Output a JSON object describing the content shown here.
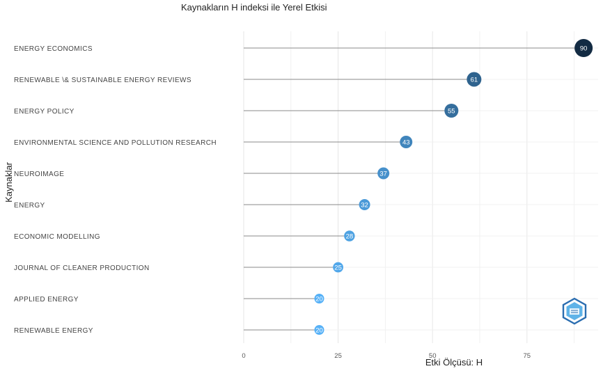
{
  "chart_data": {
    "type": "lollipop",
    "title": "Kaynakların H indeksi ile Yerel Etkisi",
    "xlabel": "Etki Ölçüsü: H",
    "ylabel": "Kaynaklar",
    "xlim": [
      0,
      92
    ],
    "xticks": [
      0,
      25,
      50,
      75
    ],
    "categories": [
      "ENERGY ECONOMICS",
      "RENEWABLE \\& SUSTAINABLE ENERGY REVIEWS",
      "ENERGY POLICY",
      "ENVIRONMENTAL SCIENCE AND POLLUTION RESEARCH",
      "NEUROIMAGE",
      "ENERGY",
      "ECONOMIC MODELLING",
      "JOURNAL OF CLEANER PRODUCTION",
      "APPLIED ENERGY",
      "RENEWABLE ENERGY"
    ],
    "values": [
      90,
      61,
      55,
      43,
      37,
      32,
      28,
      25,
      20,
      20
    ],
    "color_scale": {
      "low": "#56b1f7",
      "high": "#132b43"
    },
    "grid": true,
    "legend": "none"
  },
  "logo": {
    "icon": "hexagon-logo-icon",
    "colors": [
      "#2a6db0",
      "#5fb3e8"
    ]
  }
}
